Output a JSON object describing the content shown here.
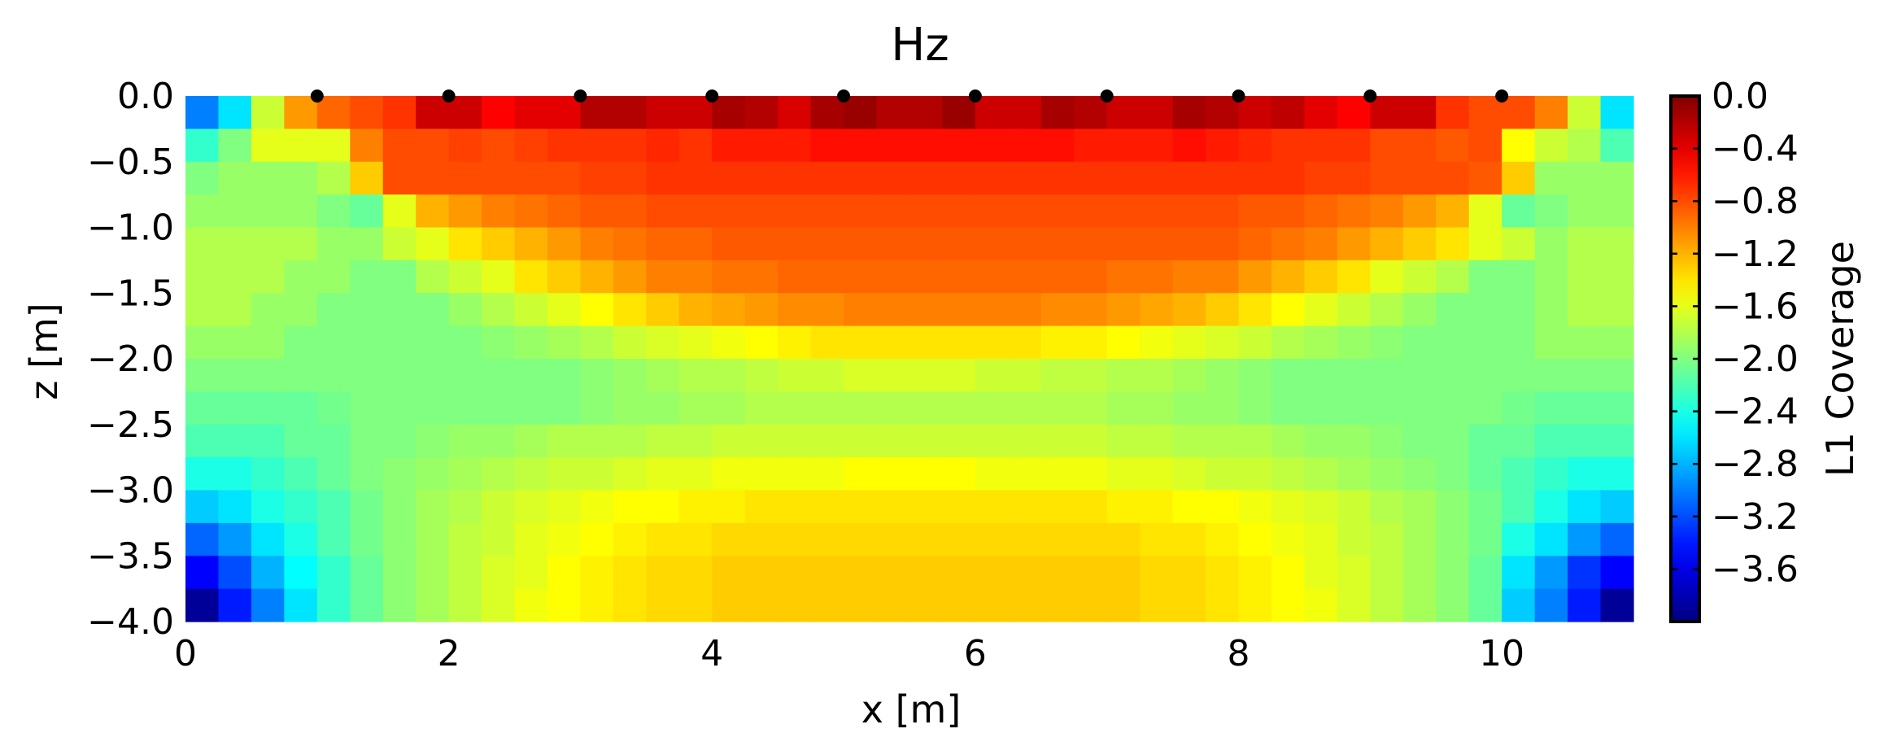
{
  "chart_data": {
    "type": "heatmap",
    "title": "Hz",
    "xlabel": "x [m]",
    "ylabel": "z [m]",
    "colorbar_label": "L1 Coverage",
    "colormap": "jet",
    "xlim": [
      0,
      11
    ],
    "ylim": [
      -4.0,
      0.0
    ],
    "clim": [
      -4.0,
      0.0
    ],
    "x_ticks": [
      0,
      2,
      4,
      6,
      8,
      10
    ],
    "x_tick_labels": [
      "0",
      "2",
      "4",
      "6",
      "8",
      "10"
    ],
    "y_ticks": [
      0.0,
      -0.5,
      -1.0,
      -1.5,
      -2.0,
      -2.5,
      -3.0,
      -3.5,
      -4.0
    ],
    "y_tick_labels": [
      "0.0",
      "−0.5",
      "−1.0",
      "−1.5",
      "−2.0",
      "−2.5",
      "−3.0",
      "−3.5",
      "−4.0"
    ],
    "colorbar_ticks": [
      0.0,
      -0.4,
      -0.8,
      -1.2,
      -1.6,
      -2.0,
      -2.4,
      -2.8,
      -3.2,
      -3.6
    ],
    "colorbar_tick_labels": [
      "0.0",
      "−0.4",
      "−0.8",
      "−1.2",
      "−1.6",
      "−2.0",
      "−2.4",
      "−2.8",
      "−3.2",
      "−3.6"
    ],
    "grid": false,
    "n_cols": 44,
    "n_rows": 16,
    "cell_width_m": 0.25,
    "cell_height_m": 0.25,
    "values": [
      [
        -3.0,
        -2.6,
        -1.7,
        -1.1,
        -0.9,
        -0.8,
        -0.7,
        -0.3,
        -0.3,
        -0.5,
        -0.4,
        -0.4,
        -0.2,
        -0.2,
        -0.3,
        -0.3,
        -0.15,
        -0.2,
        -0.35,
        -0.15,
        -0.1,
        -0.2,
        -0.2,
        -0.1,
        -0.3,
        -0.3,
        -0.15,
        -0.2,
        -0.3,
        -0.3,
        -0.15,
        -0.2,
        -0.3,
        -0.25,
        -0.4,
        -0.5,
        -0.3,
        -0.3,
        -0.7,
        -0.8,
        -0.8,
        -1.0,
        -1.7,
        -2.6
      ],
      [
        -2.3,
        -2.0,
        -1.6,
        -1.6,
        -1.6,
        -1.0,
        -0.8,
        -0.8,
        -0.75,
        -0.8,
        -0.75,
        -0.7,
        -0.7,
        -0.7,
        -0.65,
        -0.7,
        -0.6,
        -0.6,
        -0.6,
        -0.55,
        -0.55,
        -0.55,
        -0.55,
        -0.55,
        -0.55,
        -0.55,
        -0.55,
        -0.6,
        -0.6,
        -0.6,
        -0.55,
        -0.6,
        -0.65,
        -0.7,
        -0.7,
        -0.7,
        -0.8,
        -0.8,
        -0.85,
        -0.8,
        -1.5,
        -1.7,
        -1.8,
        -2.2
      ],
      [
        -2.0,
        -1.9,
        -1.9,
        -1.9,
        -1.8,
        -1.3,
        -0.8,
        -0.8,
        -0.8,
        -0.8,
        -0.8,
        -0.8,
        -0.75,
        -0.75,
        -0.7,
        -0.7,
        -0.7,
        -0.7,
        -0.7,
        -0.7,
        -0.7,
        -0.7,
        -0.7,
        -0.7,
        -0.7,
        -0.7,
        -0.7,
        -0.7,
        -0.7,
        -0.7,
        -0.7,
        -0.7,
        -0.7,
        -0.7,
        -0.75,
        -0.75,
        -0.8,
        -0.8,
        -0.8,
        -0.85,
        -1.3,
        -1.9,
        -1.9,
        -1.9
      ],
      [
        -1.9,
        -1.9,
        -1.9,
        -1.9,
        -2.0,
        -2.1,
        -1.6,
        -1.2,
        -1.1,
        -1.0,
        -0.95,
        -0.9,
        -0.85,
        -0.85,
        -0.8,
        -0.8,
        -0.8,
        -0.8,
        -0.8,
        -0.8,
        -0.8,
        -0.8,
        -0.8,
        -0.8,
        -0.8,
        -0.8,
        -0.8,
        -0.8,
        -0.8,
        -0.8,
        -0.8,
        -0.8,
        -0.85,
        -0.85,
        -0.9,
        -0.95,
        -1.0,
        -1.1,
        -1.2,
        -1.6,
        -2.1,
        -2.0,
        -1.9,
        -1.9
      ],
      [
        -1.8,
        -1.8,
        -1.8,
        -1.8,
        -1.9,
        -1.9,
        -1.7,
        -1.6,
        -1.4,
        -1.3,
        -1.2,
        -1.1,
        -1.0,
        -0.95,
        -0.9,
        -0.9,
        -0.85,
        -0.85,
        -0.85,
        -0.85,
        -0.85,
        -0.85,
        -0.85,
        -0.85,
        -0.85,
        -0.85,
        -0.85,
        -0.85,
        -0.85,
        -0.85,
        -0.85,
        -0.85,
        -0.9,
        -0.95,
        -1.0,
        -1.1,
        -1.2,
        -1.3,
        -1.4,
        -1.6,
        -1.7,
        -1.9,
        -1.8,
        -1.8
      ],
      [
        -1.8,
        -1.8,
        -1.8,
        -1.9,
        -1.9,
        -2.0,
        -2.0,
        -1.8,
        -1.7,
        -1.6,
        -1.4,
        -1.3,
        -1.2,
        -1.1,
        -1.0,
        -1.0,
        -0.95,
        -0.95,
        -0.9,
        -0.9,
        -0.9,
        -0.9,
        -0.9,
        -0.9,
        -0.9,
        -0.9,
        -0.9,
        -0.9,
        -0.95,
        -0.95,
        -1.0,
        -1.0,
        -1.1,
        -1.2,
        -1.3,
        -1.4,
        -1.6,
        -1.7,
        -1.8,
        -2.0,
        -2.0,
        -1.9,
        -1.8,
        -1.8
      ],
      [
        -1.8,
        -1.8,
        -1.9,
        -1.9,
        -2.0,
        -2.0,
        -2.0,
        -2.0,
        -1.9,
        -1.8,
        -1.7,
        -1.6,
        -1.5,
        -1.4,
        -1.3,
        -1.2,
        -1.15,
        -1.1,
        -1.05,
        -1.05,
        -1.0,
        -1.0,
        -1.0,
        -1.0,
        -1.0,
        -1.0,
        -1.05,
        -1.05,
        -1.1,
        -1.15,
        -1.2,
        -1.3,
        -1.4,
        -1.5,
        -1.6,
        -1.7,
        -1.8,
        -1.9,
        -2.0,
        -2.0,
        -2.0,
        -1.9,
        -1.8,
        -1.8
      ],
      [
        -1.9,
        -1.9,
        -1.9,
        -2.0,
        -2.0,
        -2.0,
        -2.0,
        -2.0,
        -2.0,
        -1.95,
        -1.9,
        -1.85,
        -1.8,
        -1.7,
        -1.65,
        -1.6,
        -1.55,
        -1.5,
        -1.45,
        -1.4,
        -1.4,
        -1.4,
        -1.4,
        -1.4,
        -1.4,
        -1.4,
        -1.45,
        -1.45,
        -1.5,
        -1.55,
        -1.6,
        -1.65,
        -1.7,
        -1.8,
        -1.85,
        -1.9,
        -1.95,
        -2.0,
        -2.0,
        -2.0,
        -2.0,
        -1.9,
        -1.9,
        -1.9
      ],
      [
        -2.0,
        -2.0,
        -2.0,
        -2.0,
        -2.0,
        -2.0,
        -2.0,
        -2.0,
        -2.0,
        -2.0,
        -2.0,
        -2.0,
        -1.95,
        -1.9,
        -1.85,
        -1.8,
        -1.8,
        -1.75,
        -1.7,
        -1.7,
        -1.65,
        -1.65,
        -1.65,
        -1.65,
        -1.7,
        -1.7,
        -1.75,
        -1.75,
        -1.8,
        -1.8,
        -1.85,
        -1.9,
        -1.95,
        -2.0,
        -2.0,
        -2.0,
        -2.0,
        -2.0,
        -2.0,
        -2.0,
        -2.0,
        -2.0,
        -2.0,
        -2.0
      ],
      [
        -2.1,
        -2.1,
        -2.1,
        -2.1,
        -2.05,
        -2.0,
        -2.0,
        -2.0,
        -2.0,
        -2.0,
        -2.0,
        -2.0,
        -1.95,
        -1.9,
        -1.9,
        -1.85,
        -1.85,
        -1.8,
        -1.8,
        -1.8,
        -1.8,
        -1.8,
        -1.8,
        -1.8,
        -1.8,
        -1.8,
        -1.8,
        -1.8,
        -1.85,
        -1.85,
        -1.9,
        -1.9,
        -1.95,
        -2.0,
        -2.0,
        -2.0,
        -2.0,
        -2.0,
        -2.0,
        -2.0,
        -2.05,
        -2.1,
        -2.1,
        -2.1
      ],
      [
        -2.2,
        -2.2,
        -2.2,
        -2.1,
        -2.1,
        -2.0,
        -2.0,
        -1.95,
        -1.9,
        -1.9,
        -1.85,
        -1.8,
        -1.8,
        -1.8,
        -1.75,
        -1.75,
        -1.7,
        -1.7,
        -1.7,
        -1.7,
        -1.7,
        -1.7,
        -1.7,
        -1.7,
        -1.7,
        -1.7,
        -1.7,
        -1.7,
        -1.75,
        -1.75,
        -1.8,
        -1.8,
        -1.8,
        -1.85,
        -1.9,
        -1.9,
        -1.95,
        -2.0,
        -2.0,
        -2.1,
        -2.1,
        -2.2,
        -2.2,
        -2.2
      ],
      [
        -2.4,
        -2.4,
        -2.3,
        -2.2,
        -2.1,
        -2.0,
        -1.95,
        -1.9,
        -1.85,
        -1.8,
        -1.75,
        -1.7,
        -1.7,
        -1.65,
        -1.6,
        -1.6,
        -1.55,
        -1.55,
        -1.55,
        -1.55,
        -1.5,
        -1.5,
        -1.5,
        -1.5,
        -1.55,
        -1.55,
        -1.55,
        -1.55,
        -1.6,
        -1.6,
        -1.65,
        -1.7,
        -1.7,
        -1.75,
        -1.8,
        -1.85,
        -1.9,
        -1.95,
        -2.0,
        -2.1,
        -2.2,
        -2.3,
        -2.4,
        -2.4
      ],
      [
        -2.7,
        -2.6,
        -2.4,
        -2.3,
        -2.2,
        -2.05,
        -1.95,
        -1.85,
        -1.8,
        -1.7,
        -1.65,
        -1.6,
        -1.55,
        -1.5,
        -1.5,
        -1.45,
        -1.45,
        -1.4,
        -1.4,
        -1.4,
        -1.4,
        -1.4,
        -1.4,
        -1.4,
        -1.4,
        -1.4,
        -1.4,
        -1.4,
        -1.45,
        -1.45,
        -1.5,
        -1.5,
        -1.55,
        -1.6,
        -1.65,
        -1.7,
        -1.8,
        -1.85,
        -1.95,
        -2.05,
        -2.2,
        -2.4,
        -2.6,
        -2.7
      ],
      [
        -3.1,
        -2.9,
        -2.6,
        -2.4,
        -2.2,
        -2.05,
        -1.95,
        -1.85,
        -1.75,
        -1.7,
        -1.6,
        -1.55,
        -1.5,
        -1.45,
        -1.4,
        -1.4,
        -1.35,
        -1.35,
        -1.35,
        -1.35,
        -1.35,
        -1.35,
        -1.35,
        -1.35,
        -1.35,
        -1.35,
        -1.35,
        -1.35,
        -1.35,
        -1.4,
        -1.4,
        -1.45,
        -1.5,
        -1.55,
        -1.6,
        -1.7,
        -1.75,
        -1.85,
        -1.95,
        -2.05,
        -2.4,
        -2.6,
        -2.9,
        -3.1
      ],
      [
        -3.5,
        -3.2,
        -2.8,
        -2.5,
        -2.3,
        -2.1,
        -1.95,
        -1.85,
        -1.75,
        -1.65,
        -1.6,
        -1.5,
        -1.45,
        -1.4,
        -1.35,
        -1.35,
        -1.3,
        -1.3,
        -1.3,
        -1.3,
        -1.3,
        -1.3,
        -1.3,
        -1.3,
        -1.3,
        -1.3,
        -1.3,
        -1.3,
        -1.3,
        -1.35,
        -1.35,
        -1.4,
        -1.45,
        -1.5,
        -1.6,
        -1.65,
        -1.75,
        -1.85,
        -1.95,
        -2.1,
        -2.6,
        -2.9,
        -3.3,
        -3.5
      ],
      [
        -3.9,
        -3.4,
        -3.0,
        -2.6,
        -2.3,
        -2.1,
        -1.95,
        -1.85,
        -1.75,
        -1.65,
        -1.55,
        -1.5,
        -1.45,
        -1.4,
        -1.35,
        -1.35,
        -1.3,
        -1.3,
        -1.3,
        -1.3,
        -1.3,
        -1.3,
        -1.3,
        -1.3,
        -1.3,
        -1.3,
        -1.3,
        -1.3,
        -1.3,
        -1.35,
        -1.35,
        -1.4,
        -1.45,
        -1.5,
        -1.55,
        -1.65,
        -1.75,
        -1.85,
        -1.95,
        -2.1,
        -2.7,
        -3.0,
        -3.4,
        -3.9
      ]
    ],
    "electrodes": {
      "x": [
        1,
        2,
        3,
        4,
        5,
        6,
        7,
        8,
        9,
        10
      ],
      "z": [
        0,
        0,
        0,
        0,
        0,
        0,
        0,
        0,
        0,
        0
      ],
      "color": "#000000"
    }
  }
}
